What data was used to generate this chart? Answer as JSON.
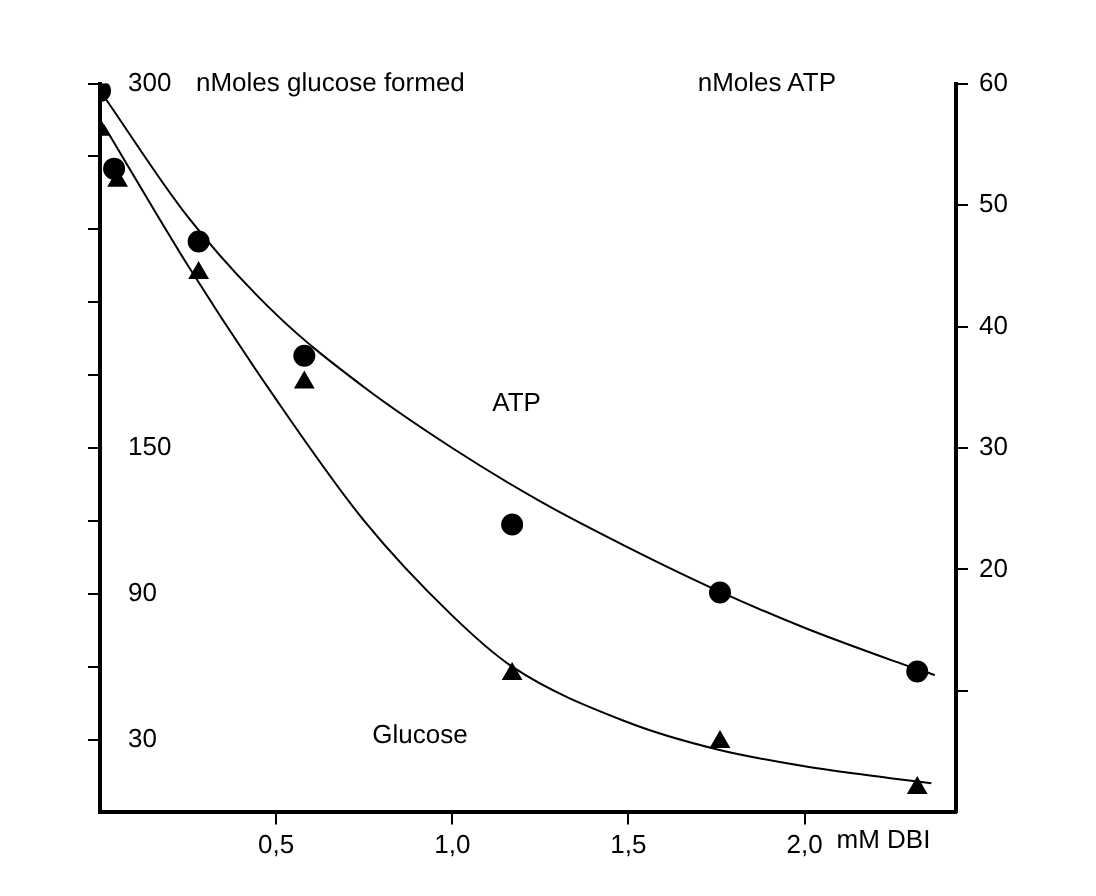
{
  "chart_data": {
    "type": "scatter",
    "xlabel": "mM DBI",
    "ylabel": "nMoles glucose formed",
    "y2label": "nMoles ATP",
    "xlim": [
      0,
      2.43
    ],
    "xticks": [
      {
        "value": 0.5,
        "label": "0,5"
      },
      {
        "value": 1.0,
        "label": "1,0"
      },
      {
        "value": 1.5,
        "label": "1,5"
      },
      {
        "value": 2.0,
        "label": "2,0"
      }
    ],
    "ylim": [
      0,
      300
    ],
    "yticks": [
      {
        "value": 30,
        "label": "30"
      },
      {
        "value": 60,
        "label": null
      },
      {
        "value": 90,
        "label": "90"
      },
      {
        "value": 120,
        "label": null
      },
      {
        "value": 150,
        "label": "150"
      },
      {
        "value": 180,
        "label": null
      },
      {
        "value": 210,
        "label": null
      },
      {
        "value": 240,
        "label": null
      },
      {
        "value": 270,
        "label": null
      },
      {
        "value": 300,
        "label": "300"
      }
    ],
    "y2lim": [
      0,
      60
    ],
    "y2ticks": [
      {
        "value": 10,
        "label": null
      },
      20,
      30,
      40,
      50,
      60
    ],
    "grid": false,
    "legend": false,
    "series": [
      {
        "type": "scatter",
        "axis": "y2",
        "marker": "circle",
        "color": "#000000",
        "x": [
          0,
          0.04,
          0.28,
          0.58,
          1.17,
          1.76,
          2.32
        ],
        "values": [
          59.4,
          53,
          47,
          37.6,
          23.7,
          18.1,
          11.6
        ]
      },
      {
        "type": "scatter",
        "axis": "y",
        "marker": "triangle",
        "color": "#000000",
        "x": [
          0,
          0.05,
          0.28,
          0.58,
          1.17,
          1.76,
          2.32
        ],
        "values": [
          281,
          260,
          222,
          177,
          57,
          29,
          10
        ]
      },
      {
        "type": "line",
        "name": "ATP",
        "axis": "y2",
        "marker": "none",
        "color": "#000000",
        "x": [
          0.01,
          0.25,
          0.5,
          0.75,
          1.0,
          1.25,
          1.5,
          1.75,
          2.0,
          2.25,
          2.37
        ],
        "values": [
          59,
          49,
          41,
          35,
          30,
          25.6,
          21.8,
          18.3,
          15.2,
          12.5,
          11.3
        ]
      },
      {
        "type": "line",
        "name": "Glucose",
        "axis": "y",
        "marker": "none",
        "color": "#000000",
        "x": [
          0.01,
          0.25,
          0.5,
          0.75,
          1.0,
          1.17,
          1.5,
          1.75,
          2.0,
          2.25,
          2.36
        ],
        "values": [
          283,
          225,
          170,
          120,
          81,
          60,
          37,
          26,
          19,
          14,
          12
        ]
      }
    ]
  }
}
